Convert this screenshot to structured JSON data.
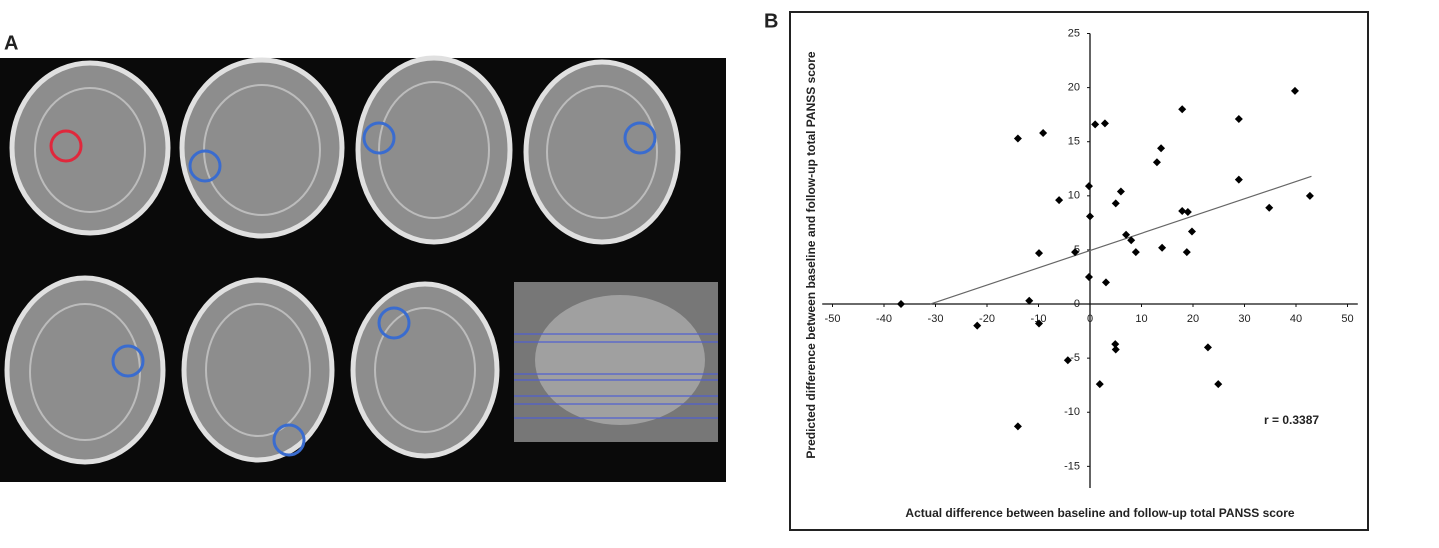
{
  "panel_labels": {
    "a": "A",
    "b": "B"
  },
  "chart_data": {
    "type": "scatter",
    "x_label": "Actual difference between baseline and follow-up total PANSS score",
    "y_label": "Predicted difference between baseline and follow-up total PANSS score",
    "annotation": "r = 0.3387",
    "color": "#000000",
    "x": [
      -36.7,
      -21.9,
      -14.0,
      -14.0,
      -11.8,
      -9.9,
      -9.9,
      -9.1,
      -6.0,
      -4.3,
      -2.9,
      -0.2,
      -0.2,
      0.0,
      1.0,
      1.9,
      2.9,
      3.1,
      4.9,
      5.0,
      5.0,
      6.0,
      7.0,
      8.0,
      8.9,
      13.0,
      13.8,
      14.0,
      17.9,
      17.9,
      19.0,
      18.8,
      19.8,
      22.9,
      24.9,
      28.9,
      28.9,
      34.8,
      39.8,
      42.7
    ],
    "values": [
      0.0,
      -2.0,
      15.3,
      -11.3,
      0.3,
      4.7,
      -1.8,
      15.8,
      9.6,
      -5.2,
      4.8,
      10.9,
      2.5,
      8.1,
      16.6,
      -7.4,
      16.7,
      2.0,
      -3.7,
      -4.2,
      9.3,
      10.4,
      6.4,
      5.9,
      4.8,
      13.1,
      14.4,
      5.2,
      18.0,
      8.6,
      8.5,
      4.8,
      6.7,
      -4.0,
      -7.4,
      17.1,
      11.5,
      8.9,
      19.7,
      10.0
    ],
    "trendline": {
      "x": [
        -31,
        43
      ],
      "y": [
        0,
        11.8
      ],
      "color": "#666666"
    },
    "xlim": [
      -52,
      52
    ],
    "ylim": [
      -17,
      25
    ],
    "xticks": [
      -50,
      -40,
      -30,
      -20,
      -10,
      0,
      10,
      20,
      30,
      40,
      50
    ],
    "yticks": [
      -15,
      -10,
      -5,
      0,
      5,
      10,
      15,
      20,
      25
    ]
  }
}
